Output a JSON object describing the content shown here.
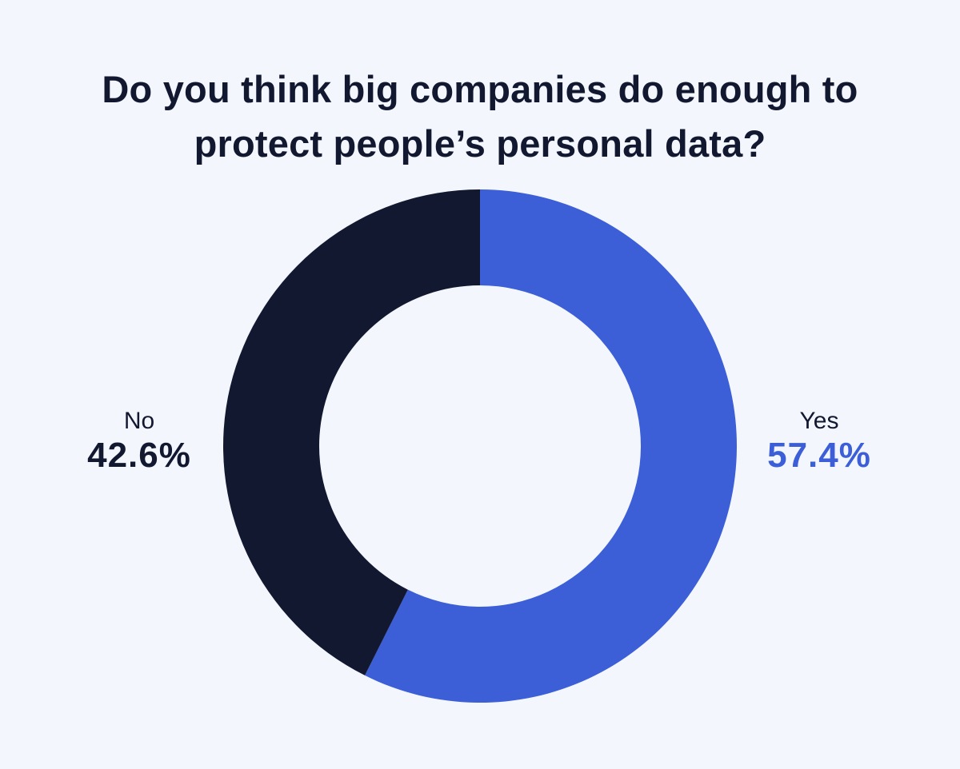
{
  "title_lines": [
    "Do you think big companies do enough to",
    "protect people’s personal data?"
  ],
  "chart_data": {
    "type": "pie",
    "variant": "donut",
    "title": "Do you think big companies do enough to protect people’s personal data?",
    "categories": [
      "Yes",
      "No"
    ],
    "values": [
      57.4,
      42.6
    ],
    "value_labels": [
      "57.4%",
      "42.6%"
    ],
    "colors": [
      "#3c5fd8",
      "#131831"
    ],
    "start_angle": "12 o'clock",
    "direction": "clockwise",
    "legend": "none (direct labels left and right)"
  },
  "colors": {
    "background": "#f3f7fd",
    "title_text": "#131831",
    "yes_accent": "#3c5fd8",
    "no_accent": "#131831"
  }
}
